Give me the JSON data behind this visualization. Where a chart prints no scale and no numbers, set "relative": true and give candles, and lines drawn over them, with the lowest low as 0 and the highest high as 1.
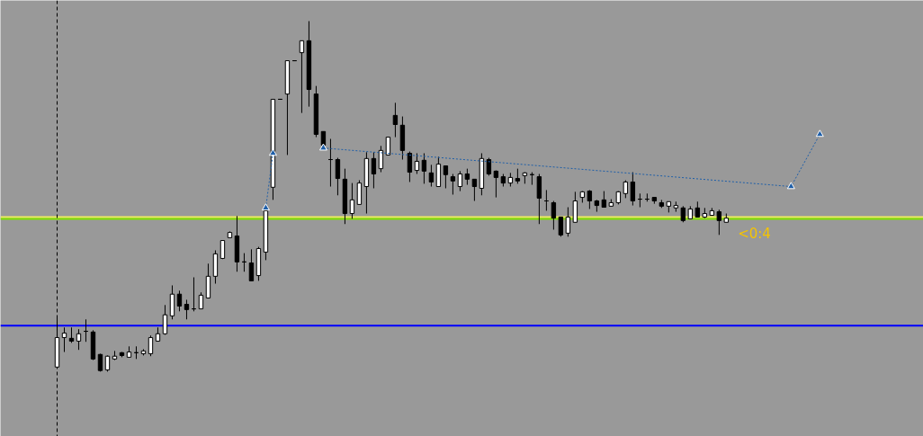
{
  "chart_data": {
    "type": "candlestick",
    "relative": true,
    "categories": [
      null,
      null,
      null,
      null,
      null,
      null,
      null,
      null,
      null,
      null,
      null,
      null,
      null,
      null,
      null,
      null,
      null,
      null,
      null,
      null,
      null,
      null,
      null,
      null,
      null,
      null,
      null,
      null,
      null,
      null,
      null,
      null,
      null,
      null,
      null,
      null,
      null,
      null,
      null,
      null,
      null,
      null,
      null,
      null,
      null,
      null,
      null,
      null,
      null,
      null,
      null,
      null,
      null,
      null,
      null,
      null,
      null,
      null,
      null,
      null,
      null,
      null,
      null,
      null,
      null,
      null,
      null,
      null,
      null,
      null,
      null,
      null,
      null,
      null,
      null,
      null,
      null,
      null,
      null,
      null,
      null,
      null,
      null,
      null,
      null,
      null,
      null,
      null,
      null,
      null,
      null,
      null,
      null,
      null,
      null,
      null,
      null,
      null,
      null,
      null,
      null,
      null,
      null,
      null,
      null,
      null,
      null
    ],
    "ohlc": [
      [
        0.013,
        0.154,
        0.013,
        0.097
      ],
      [
        0.097,
        0.126,
        0.056,
        0.11
      ],
      [
        0.095,
        0.126,
        0.082,
        0.087
      ],
      [
        0.087,
        0.121,
        0.062,
        0.108
      ],
      [
        0.115,
        0.149,
        0.085,
        0.115
      ],
      [
        0.113,
        0.118,
        0.033,
        0.036
      ],
      [
        0.049,
        0.051,
        0.0,
        0.003
      ],
      [
        0.005,
        0.046,
        0.0,
        0.044
      ],
      [
        0.036,
        0.059,
        0.033,
        0.044
      ],
      [
        0.054,
        0.056,
        0.041,
        0.046
      ],
      [
        0.041,
        0.072,
        0.041,
        0.056
      ],
      [
        0.054,
        0.072,
        0.036,
        0.054
      ],
      [
        0.051,
        0.064,
        0.046,
        0.059
      ],
      [
        0.051,
        0.103,
        0.044,
        0.097
      ],
      [
        0.087,
        0.126,
        0.087,
        0.108
      ],
      [
        0.108,
        0.19,
        0.105,
        0.162
      ],
      [
        0.159,
        0.246,
        0.149,
        0.221
      ],
      [
        0.221,
        0.231,
        0.172,
        0.187
      ],
      [
        0.192,
        0.205,
        0.149,
        0.177
      ],
      [
        0.179,
        0.269,
        0.172,
        0.179
      ],
      [
        0.179,
        0.226,
        0.179,
        0.218
      ],
      [
        0.21,
        0.308,
        0.21,
        0.272
      ],
      [
        0.272,
        0.346,
        0.251,
        0.336
      ],
      [
        0.323,
        0.374,
        0.321,
        0.374
      ],
      [
        0.382,
        0.4,
        0.382,
        0.397
      ],
      [
        0.387,
        0.444,
        0.285,
        0.313
      ],
      [
        0.313,
        0.338,
        0.285,
        0.313
      ],
      [
        0.31,
        0.349,
        0.259,
        0.259
      ],
      [
        0.274,
        0.356,
        0.259,
        0.351
      ],
      [
        0.341,
        0.459,
        0.318,
        0.459
      ],
      [
        0.526,
        0.777,
        0.49,
        0.777
      ],
      [
        0.777,
        0.777,
        0.777,
        0.777
      ],
      [
        0.792,
        0.887,
        0.618,
        0.887
      ],
      [
        0.887,
        0.887,
        0.887,
        0.887
      ],
      [
        0.91,
        0.944,
        0.738,
        0.944
      ],
      [
        0.944,
        1.0,
        0.756,
        0.805
      ],
      [
        0.792,
        0.815,
        0.669,
        0.677
      ],
      [
        0.685,
        0.685,
        0.646,
        0.646
      ],
      [
        0.605,
        0.664,
        0.528,
        0.605
      ],
      [
        0.605,
        0.61,
        0.503,
        0.551
      ],
      [
        0.549,
        0.579,
        0.421,
        0.451
      ],
      [
        0.451,
        0.538,
        0.436,
        0.49
      ],
      [
        0.477,
        0.546,
        0.477,
        0.538
      ],
      [
        0.528,
        0.626,
        0.451,
        0.608
      ],
      [
        0.608,
        0.626,
        0.523,
        0.564
      ],
      [
        0.579,
        0.644,
        0.569,
        0.631
      ],
      [
        0.618,
        0.669,
        0.618,
        0.669
      ],
      [
        0.731,
        0.767,
        0.669,
        0.705
      ],
      [
        0.703,
        0.728,
        0.605,
        0.631
      ],
      [
        0.623,
        0.628,
        0.541,
        0.569
      ],
      [
        0.574,
        0.623,
        0.564,
        0.6
      ],
      [
        0.603,
        0.623,
        0.536,
        0.572
      ],
      [
        0.567,
        0.59,
        0.528,
        0.541
      ],
      [
        0.528,
        0.613,
        0.528,
        0.592
      ],
      [
        0.587,
        0.587,
        0.523,
        0.562
      ],
      [
        0.556,
        0.564,
        0.505,
        0.544
      ],
      [
        0.528,
        0.572,
        0.515,
        0.564
      ],
      [
        0.564,
        0.579,
        0.533,
        0.549
      ],
      [
        0.549,
        0.549,
        0.487,
        0.528
      ],
      [
        0.523,
        0.623,
        0.503,
        0.608
      ],
      [
        0.605,
        0.61,
        0.559,
        0.564
      ],
      [
        0.572,
        0.574,
        0.497,
        0.554
      ],
      [
        0.556,
        0.564,
        0.528,
        0.538
      ],
      [
        0.538,
        0.567,
        0.528,
        0.554
      ],
      [
        0.551,
        0.579,
        0.536,
        0.544
      ],
      [
        0.559,
        0.569,
        0.536,
        0.567
      ],
      [
        0.562,
        0.569,
        0.533,
        0.562
      ],
      [
        0.556,
        0.564,
        0.421,
        0.495
      ],
      [
        0.487,
        0.518,
        0.459,
        0.487
      ],
      [
        0.482,
        0.487,
        0.405,
        0.438
      ],
      [
        0.441,
        0.441,
        0.385,
        0.39
      ],
      [
        0.395,
        0.469,
        0.385,
        0.441
      ],
      [
        0.426,
        0.513,
        0.426,
        0.487
      ],
      [
        0.497,
        0.515,
        0.482,
        0.513
      ],
      [
        0.515,
        0.518,
        0.464,
        0.487
      ],
      [
        0.487,
        0.49,
        0.456,
        0.474
      ],
      [
        0.49,
        0.515,
        0.469,
        0.469
      ],
      [
        0.472,
        0.492,
        0.472,
        0.482
      ],
      [
        0.482,
        0.515,
        0.477,
        0.513
      ],
      [
        0.508,
        0.546,
        0.495,
        0.541
      ],
      [
        0.541,
        0.569,
        0.474,
        0.487
      ],
      [
        0.492,
        0.508,
        0.469,
        0.492
      ],
      [
        0.492,
        0.508,
        0.485,
        0.492
      ],
      [
        0.497,
        0.497,
        0.479,
        0.487
      ],
      [
        0.482,
        0.49,
        0.467,
        0.472
      ],
      [
        0.472,
        0.485,
        0.454,
        0.485
      ],
      [
        0.467,
        0.485,
        0.456,
        0.474
      ],
      [
        0.467,
        0.472,
        0.426,
        0.431
      ],
      [
        0.436,
        0.472,
        0.436,
        0.464
      ],
      [
        0.467,
        0.485,
        0.441,
        0.441
      ],
      [
        0.441,
        0.467,
        0.438,
        0.451
      ],
      [
        0.446,
        0.467,
        0.446,
        0.459
      ],
      [
        0.456,
        0.462,
        0.39,
        0.431
      ],
      [
        0.426,
        0.451,
        0.426,
        0.438
      ],
      null,
      null,
      null,
      null,
      null,
      null,
      null,
      null,
      null,
      null,
      null,
      null,
      null
    ],
    "series": [
      {
        "type": "line",
        "values": [
          null,
          null,
          null,
          null,
          null,
          null,
          null,
          null,
          null,
          null,
          null,
          null,
          null,
          null,
          null,
          null,
          null,
          null,
          null,
          null,
          null,
          null,
          null,
          null,
          null,
          null,
          null,
          null,
          null,
          0.467,
          0.623,
          null,
          null,
          null,
          null,
          null,
          null,
          null,
          null,
          null,
          null,
          null,
          null,
          null,
          null,
          null,
          null,
          null,
          null,
          null,
          null,
          null,
          null,
          null,
          null,
          null,
          null,
          null,
          null,
          null,
          null,
          null,
          null,
          null,
          null,
          null,
          null,
          null,
          null,
          null,
          null,
          null,
          null,
          null,
          null,
          null,
          null,
          null,
          null,
          null,
          null,
          null,
          null,
          null,
          null,
          null,
          null,
          null,
          null,
          null,
          null,
          null,
          null,
          null,
          null,
          null,
          null,
          null,
          null,
          null,
          null,
          null,
          null,
          null,
          null,
          null,
          null
        ],
        "color": "#1f5fa8",
        "line_style": "dotted",
        "marker": "triangle"
      },
      {
        "type": "line",
        "values": [
          null,
          null,
          null,
          null,
          null,
          null,
          null,
          null,
          null,
          null,
          null,
          null,
          null,
          null,
          null,
          null,
          null,
          null,
          null,
          null,
          null,
          null,
          null,
          null,
          null,
          null,
          null,
          null,
          null,
          null,
          null,
          null,
          null,
          null,
          null,
          null,
          null,
          0.638,
          null,
          null,
          null,
          null,
          null,
          null,
          null,
          null,
          null,
          null,
          null,
          null,
          null,
          null,
          null,
          null,
          null,
          null,
          null,
          null,
          null,
          null,
          null,
          null,
          null,
          null,
          null,
          null,
          null,
          null,
          null,
          null,
          null,
          null,
          null,
          null,
          null,
          null,
          null,
          null,
          null,
          null,
          null,
          null,
          null,
          null,
          null,
          null,
          null,
          null,
          null,
          null,
          null,
          null,
          null,
          null,
          null,
          null,
          null,
          null,
          null,
          null,
          null,
          null,
          0.528,
          null,
          null,
          null,
          0.677
        ],
        "color": "#1f5fa8",
        "line_style": "dotted",
        "marker": "triangle"
      }
    ],
    "ref_lines": [
      {
        "axis": "y",
        "value": 0.441,
        "color": "#f0f060"
      },
      {
        "axis": "y",
        "value": 0.436,
        "color": "#80e000"
      },
      {
        "axis": "y",
        "value": 0.131,
        "color": "#0000ff"
      }
    ],
    "annotations": [
      "<0:4"
    ]
  }
}
